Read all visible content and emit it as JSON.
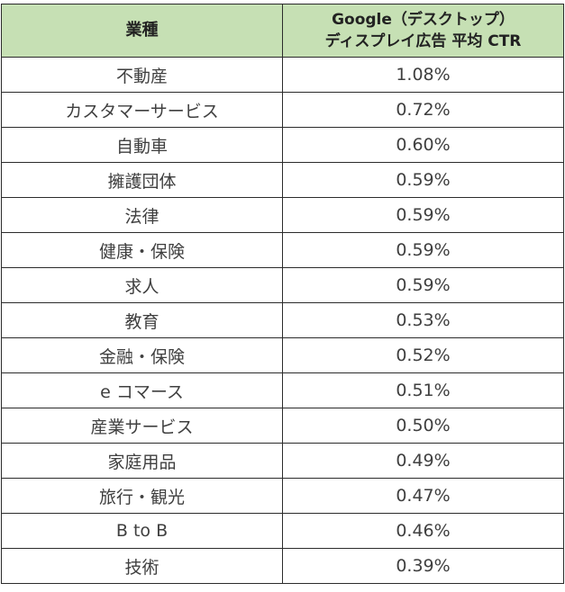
{
  "table": {
    "headers": {
      "industry": "業種",
      "ctr_line1": "Google（デスクトップ）",
      "ctr_line2": "ディスプレイ広告 平均 CTR"
    },
    "rows": [
      {
        "industry": "不動産",
        "ctr": "1.08%"
      },
      {
        "industry": "カスタマーサービス",
        "ctr": "0.72%"
      },
      {
        "industry": "自動車",
        "ctr": "0.60%"
      },
      {
        "industry": "擁護団体",
        "ctr": "0.59%"
      },
      {
        "industry": "法律",
        "ctr": "0.59%"
      },
      {
        "industry": "健康・保険",
        "ctr": "0.59%"
      },
      {
        "industry": "求人",
        "ctr": "0.59%"
      },
      {
        "industry": "教育",
        "ctr": "0.53%"
      },
      {
        "industry": "金融・保険",
        "ctr": "0.52%"
      },
      {
        "industry": "e コマース",
        "ctr": "0.51%"
      },
      {
        "industry": "産業サービス",
        "ctr": "0.50%"
      },
      {
        "industry": "家庭用品",
        "ctr": "0.49%"
      },
      {
        "industry": "旅行・観光",
        "ctr": "0.47%"
      },
      {
        "industry": "B to B",
        "ctr": "0.46%"
      },
      {
        "industry": "技術",
        "ctr": "0.39%"
      }
    ]
  },
  "colors": {
    "header_background": "#c6e0b4",
    "border": "#2b2b2b"
  }
}
